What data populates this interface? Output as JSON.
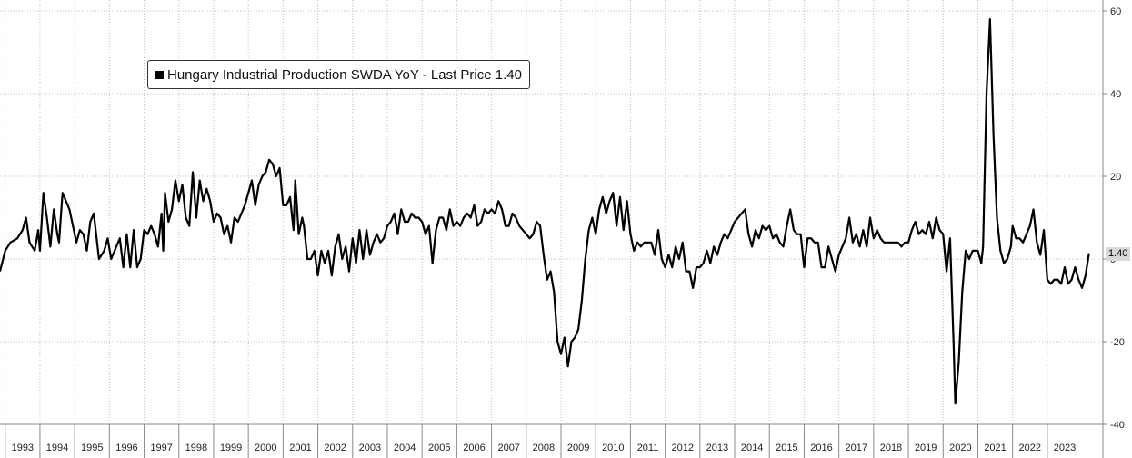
{
  "chart_data": {
    "type": "line",
    "title": "",
    "xlabel": "",
    "ylabel": "",
    "ylim": [
      -40,
      60
    ],
    "y_ticks": [
      "60",
      "40",
      "20",
      "0",
      "-20",
      "-40"
    ],
    "y_tick_values": [
      60,
      40,
      20,
      0,
      -20,
      -40
    ],
    "x_range": [
      1992.85,
      1993.0,
      2024.6
    ],
    "x_tick_labels": [
      "1993",
      "1994",
      "1995",
      "1996",
      "1997",
      "1998",
      "1999",
      "2000",
      "2001",
      "2002",
      "2003",
      "2004",
      "2005",
      "2006",
      "2007",
      "2008",
      "2009",
      "2010",
      "2011",
      "2012",
      "2013",
      "2014",
      "2015",
      "2016",
      "2017",
      "2018",
      "2019",
      "2020",
      "2021",
      "2022",
      "2023"
    ],
    "grid": true,
    "legend": {
      "placement": "top-left",
      "label": "Hungary Industrial Production SWDA YoY - Last Price 1.40",
      "color": "#000000"
    },
    "last_value_label": "1.40",
    "series": [
      {
        "name": "Hungary Industrial Production SWDA YoY",
        "color": "#000000",
        "points": [
          [
            1992.85,
            -3
          ],
          [
            1993.0,
            2
          ],
          [
            1993.15,
            4
          ],
          [
            1993.35,
            5
          ],
          [
            1993.5,
            7
          ],
          [
            1993.6,
            10
          ],
          [
            1993.7,
            4
          ],
          [
            1993.85,
            2
          ],
          [
            1993.95,
            7
          ],
          [
            1994.0,
            2
          ],
          [
            1994.1,
            16
          ],
          [
            1994.2,
            10
          ],
          [
            1994.3,
            3
          ],
          [
            1994.4,
            12
          ],
          [
            1994.5,
            6
          ],
          [
            1994.55,
            4
          ],
          [
            1994.65,
            16
          ],
          [
            1994.75,
            14
          ],
          [
            1994.85,
            12
          ],
          [
            1994.95,
            8
          ],
          [
            1995.05,
            4
          ],
          [
            1995.15,
            7
          ],
          [
            1995.25,
            6
          ],
          [
            1995.35,
            2
          ],
          [
            1995.45,
            9
          ],
          [
            1995.55,
            11
          ],
          [
            1995.7,
            0
          ],
          [
            1995.85,
            2
          ],
          [
            1995.95,
            5
          ],
          [
            1996.05,
            0
          ],
          [
            1996.2,
            3
          ],
          [
            1996.3,
            5
          ],
          [
            1996.4,
            -2
          ],
          [
            1996.5,
            6
          ],
          [
            1996.6,
            -2
          ],
          [
            1996.7,
            7
          ],
          [
            1996.8,
            -2
          ],
          [
            1996.9,
            0
          ],
          [
            1997.0,
            7
          ],
          [
            1997.1,
            6
          ],
          [
            1997.2,
            8
          ],
          [
            1997.3,
            6
          ],
          [
            1997.4,
            3
          ],
          [
            1997.5,
            11
          ],
          [
            1997.55,
            2
          ],
          [
            1997.6,
            16
          ],
          [
            1997.7,
            9
          ],
          [
            1997.8,
            12
          ],
          [
            1997.9,
            19
          ],
          [
            1998.0,
            14
          ],
          [
            1998.1,
            18
          ],
          [
            1998.2,
            10
          ],
          [
            1998.3,
            8
          ],
          [
            1998.4,
            21
          ],
          [
            1998.5,
            10
          ],
          [
            1998.6,
            19
          ],
          [
            1998.7,
            14
          ],
          [
            1998.8,
            17
          ],
          [
            1998.9,
            14
          ],
          [
            1999.0,
            9
          ],
          [
            1999.1,
            11
          ],
          [
            1999.2,
            10
          ],
          [
            1999.3,
            6
          ],
          [
            1999.4,
            8
          ],
          [
            1999.5,
            4
          ],
          [
            1999.6,
            10
          ],
          [
            1999.7,
            9
          ],
          [
            1999.8,
            11
          ],
          [
            1999.9,
            13
          ],
          [
            2000.0,
            16
          ],
          [
            2000.1,
            19
          ],
          [
            2000.2,
            13
          ],
          [
            2000.3,
            18
          ],
          [
            2000.4,
            20
          ],
          [
            2000.5,
            21
          ],
          [
            2000.6,
            24
          ],
          [
            2000.7,
            23
          ],
          [
            2000.8,
            20
          ],
          [
            2000.9,
            22
          ],
          [
            2001.0,
            13
          ],
          [
            2001.1,
            13
          ],
          [
            2001.2,
            15
          ],
          [
            2001.3,
            7
          ],
          [
            2001.35,
            19
          ],
          [
            2001.45,
            6
          ],
          [
            2001.55,
            10
          ],
          [
            2001.6,
            8
          ],
          [
            2001.7,
            0
          ],
          [
            2001.8,
            0
          ],
          [
            2001.9,
            2
          ],
          [
            2002.0,
            -4
          ],
          [
            2002.1,
            2
          ],
          [
            2002.2,
            -1
          ],
          [
            2002.3,
            2
          ],
          [
            2002.4,
            -4
          ],
          [
            2002.5,
            3
          ],
          [
            2002.6,
            6
          ],
          [
            2002.7,
            0
          ],
          [
            2002.8,
            3
          ],
          [
            2002.9,
            -3
          ],
          [
            2003.0,
            5
          ],
          [
            2003.1,
            -1
          ],
          [
            2003.2,
            7
          ],
          [
            2003.3,
            0
          ],
          [
            2003.4,
            7
          ],
          [
            2003.5,
            1
          ],
          [
            2003.6,
            4
          ],
          [
            2003.7,
            6
          ],
          [
            2003.8,
            4
          ],
          [
            2003.9,
            5
          ],
          [
            2004.0,
            8
          ],
          [
            2004.1,
            9
          ],
          [
            2004.2,
            11
          ],
          [
            2004.3,
            6
          ],
          [
            2004.4,
            12
          ],
          [
            2004.5,
            9
          ],
          [
            2004.6,
            9
          ],
          [
            2004.7,
            11
          ],
          [
            2004.8,
            10
          ],
          [
            2004.9,
            10
          ],
          [
            2005.0,
            9
          ],
          [
            2005.1,
            6
          ],
          [
            2005.2,
            8
          ],
          [
            2005.3,
            -1
          ],
          [
            2005.4,
            7
          ],
          [
            2005.5,
            10
          ],
          [
            2005.6,
            10
          ],
          [
            2005.7,
            7
          ],
          [
            2005.8,
            12
          ],
          [
            2005.9,
            8
          ],
          [
            2006.0,
            9
          ],
          [
            2006.1,
            8
          ],
          [
            2006.2,
            10
          ],
          [
            2006.3,
            11
          ],
          [
            2006.4,
            10
          ],
          [
            2006.5,
            13
          ],
          [
            2006.6,
            8
          ],
          [
            2006.7,
            9
          ],
          [
            2006.8,
            12
          ],
          [
            2006.9,
            11
          ],
          [
            2007.0,
            12
          ],
          [
            2007.1,
            11
          ],
          [
            2007.2,
            14
          ],
          [
            2007.3,
            12
          ],
          [
            2007.4,
            8
          ],
          [
            2007.5,
            8
          ],
          [
            2007.6,
            11
          ],
          [
            2007.7,
            10
          ],
          [
            2007.8,
            8
          ],
          [
            2007.9,
            7
          ],
          [
            2008.0,
            6
          ],
          [
            2008.1,
            5
          ],
          [
            2008.2,
            6
          ],
          [
            2008.3,
            9
          ],
          [
            2008.4,
            8
          ],
          [
            2008.5,
            1
          ],
          [
            2008.6,
            -5
          ],
          [
            2008.7,
            -3
          ],
          [
            2008.8,
            -8
          ],
          [
            2008.9,
            -20
          ],
          [
            2009.0,
            -23
          ],
          [
            2009.1,
            -19
          ],
          [
            2009.2,
            -26
          ],
          [
            2009.3,
            -20
          ],
          [
            2009.4,
            -19
          ],
          [
            2009.5,
            -17
          ],
          [
            2009.6,
            -10
          ],
          [
            2009.7,
            0
          ],
          [
            2009.8,
            7
          ],
          [
            2009.9,
            10
          ],
          [
            2010.0,
            6
          ],
          [
            2010.1,
            12
          ],
          [
            2010.2,
            15
          ],
          [
            2010.3,
            11
          ],
          [
            2010.4,
            14
          ],
          [
            2010.5,
            16
          ],
          [
            2010.6,
            8
          ],
          [
            2010.7,
            15
          ],
          [
            2010.8,
            7
          ],
          [
            2010.9,
            14
          ],
          [
            2011.0,
            6
          ],
          [
            2011.1,
            2
          ],
          [
            2011.2,
            4
          ],
          [
            2011.3,
            3
          ],
          [
            2011.4,
            4
          ],
          [
            2011.5,
            4
          ],
          [
            2011.6,
            4
          ],
          [
            2011.7,
            1
          ],
          [
            2011.8,
            7
          ],
          [
            2011.9,
            0
          ],
          [
            2012.0,
            -2
          ],
          [
            2012.1,
            1
          ],
          [
            2012.2,
            -2
          ],
          [
            2012.3,
            3
          ],
          [
            2012.4,
            0
          ],
          [
            2012.5,
            4
          ],
          [
            2012.6,
            -3
          ],
          [
            2012.7,
            -3
          ],
          [
            2012.8,
            -7
          ],
          [
            2012.9,
            -2
          ],
          [
            2013.0,
            -2
          ],
          [
            2013.1,
            -1
          ],
          [
            2013.2,
            2
          ],
          [
            2013.3,
            -1
          ],
          [
            2013.4,
            3
          ],
          [
            2013.5,
            1
          ],
          [
            2013.6,
            4
          ],
          [
            2013.7,
            6
          ],
          [
            2013.8,
            5
          ],
          [
            2013.9,
            7
          ],
          [
            2014.0,
            9
          ],
          [
            2014.1,
            10
          ],
          [
            2014.2,
            11
          ],
          [
            2014.3,
            12
          ],
          [
            2014.4,
            6
          ],
          [
            2014.5,
            3
          ],
          [
            2014.6,
            7
          ],
          [
            2014.7,
            5
          ],
          [
            2014.8,
            8
          ],
          [
            2014.9,
            7
          ],
          [
            2015.0,
            8
          ],
          [
            2015.1,
            5
          ],
          [
            2015.2,
            6
          ],
          [
            2015.3,
            4
          ],
          [
            2015.4,
            3
          ],
          [
            2015.5,
            8
          ],
          [
            2015.6,
            12
          ],
          [
            2015.7,
            7
          ],
          [
            2015.8,
            6
          ],
          [
            2015.9,
            6
          ],
          [
            2016.0,
            -2
          ],
          [
            2016.1,
            5
          ],
          [
            2016.2,
            5
          ],
          [
            2016.3,
            4
          ],
          [
            2016.4,
            4
          ],
          [
            2016.5,
            -2
          ],
          [
            2016.6,
            -2
          ],
          [
            2016.7,
            3
          ],
          [
            2016.8,
            0
          ],
          [
            2016.9,
            -3
          ],
          [
            2017.0,
            1
          ],
          [
            2017.1,
            3
          ],
          [
            2017.2,
            5
          ],
          [
            2017.3,
            10
          ],
          [
            2017.4,
            4
          ],
          [
            2017.5,
            6
          ],
          [
            2017.6,
            3
          ],
          [
            2017.7,
            7
          ],
          [
            2017.8,
            3
          ],
          [
            2017.9,
            10
          ],
          [
            2018.0,
            5
          ],
          [
            2018.1,
            7
          ],
          [
            2018.2,
            5
          ],
          [
            2018.3,
            4
          ],
          [
            2018.4,
            4
          ],
          [
            2018.5,
            4
          ],
          [
            2018.6,
            4
          ],
          [
            2018.7,
            4
          ],
          [
            2018.8,
            3
          ],
          [
            2018.9,
            4
          ],
          [
            2019.0,
            4
          ],
          [
            2019.1,
            7
          ],
          [
            2019.2,
            9
          ],
          [
            2019.3,
            6
          ],
          [
            2019.4,
            7
          ],
          [
            2019.5,
            6
          ],
          [
            2019.6,
            9
          ],
          [
            2019.7,
            5
          ],
          [
            2019.8,
            10
          ],
          [
            2019.9,
            7
          ],
          [
            2020.0,
            6
          ],
          [
            2020.1,
            -3
          ],
          [
            2020.2,
            5
          ],
          [
            2020.3,
            -20
          ],
          [
            2020.35,
            -35
          ],
          [
            2020.45,
            -25
          ],
          [
            2020.55,
            -8
          ],
          [
            2020.65,
            2
          ],
          [
            2020.75,
            0
          ],
          [
            2020.85,
            2
          ],
          [
            2020.95,
            2
          ],
          [
            2021.0,
            2
          ],
          [
            2021.1,
            -1
          ],
          [
            2021.15,
            3
          ],
          [
            2021.25,
            40
          ],
          [
            2021.35,
            58
          ],
          [
            2021.45,
            30
          ],
          [
            2021.55,
            10
          ],
          [
            2021.65,
            2
          ],
          [
            2021.75,
            -1
          ],
          [
            2021.85,
            0
          ],
          [
            2021.95,
            3
          ],
          [
            2022.0,
            8
          ],
          [
            2022.1,
            5
          ],
          [
            2022.2,
            5
          ],
          [
            2022.3,
            4
          ],
          [
            2022.4,
            6
          ],
          [
            2022.5,
            8
          ],
          [
            2022.6,
            12
          ],
          [
            2022.7,
            4
          ],
          [
            2022.8,
            1
          ],
          [
            2022.9,
            7
          ],
          [
            2023.0,
            -5
          ],
          [
            2023.1,
            -6
          ],
          [
            2023.2,
            -5
          ],
          [
            2023.3,
            -5
          ],
          [
            2023.4,
            -6
          ],
          [
            2023.5,
            -2
          ],
          [
            2023.6,
            -6
          ],
          [
            2023.7,
            -5
          ],
          [
            2023.8,
            -2
          ],
          [
            2023.9,
            -5
          ],
          [
            2024.0,
            -7
          ],
          [
            2024.1,
            -4
          ],
          [
            2024.2,
            1.4
          ]
        ]
      }
    ]
  }
}
